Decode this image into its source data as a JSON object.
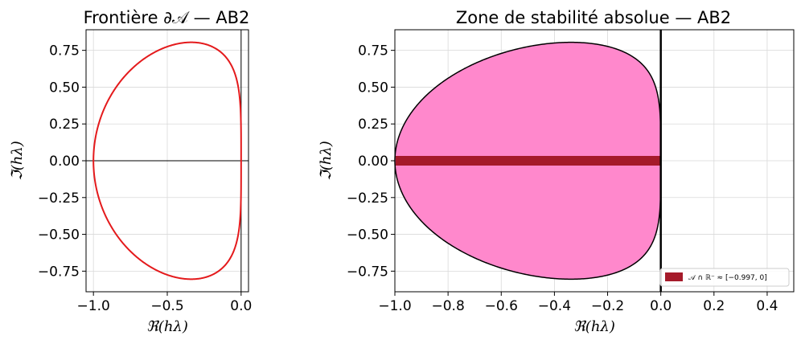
{
  "chart_data": [
    {
      "type": "line",
      "title": "Frontière ∂𝒜 — AB2",
      "xlabel": "ℜ(hλ)",
      "ylabel": "ℑ(hλ)",
      "xlim": [
        -1.05,
        0.05
      ],
      "ylim": [
        -0.89,
        0.89
      ],
      "x_ticks": [
        "−1.0",
        "−0.5",
        "0.0"
      ],
      "y_ticks": [
        "0.75",
        "0.50",
        "0.25",
        "0.00",
        "−0.25",
        "−0.50",
        "−0.75"
      ],
      "grid": true,
      "series": [
        {
          "color": "#e41a1c",
          "curve": "AB2 boundary: z = (w^2 - w) / (1.5 w - 0.5), w = e^{iθ}",
          "leftmost_point": [
            -1.0,
            0.0
          ],
          "extreme_imag": [
            [
              -0.333,
              0.805
            ],
            [
              -0.333,
              -0.805
            ]
          ]
        }
      ],
      "reference_lines": [
        {
          "axis": "x",
          "value": 0
        },
        {
          "axis": "y",
          "value": 0
        }
      ]
    },
    {
      "type": "area",
      "title": "Zone de stabilité absolue — AB2",
      "xlabel": "ℜ(hλ)",
      "ylabel": "ℑ(hλ)",
      "xlim": [
        -1.0,
        0.5
      ],
      "ylim": [
        -0.89,
        0.89
      ],
      "x_ticks": [
        "−1.0",
        "−0.8",
        "−0.6",
        "−0.4",
        "−0.2",
        "0.0",
        "0.2",
        "0.4"
      ],
      "y_ticks": [
        "0.75",
        "0.50",
        "0.25",
        "0.00",
        "−0.25",
        "−0.50",
        "−0.75"
      ],
      "grid": true,
      "region": {
        "fill": "#ff88cc",
        "edge": "#000000"
      },
      "real_interval": {
        "from": -0.997,
        "to": 0.0,
        "color": "#a51a2a"
      },
      "legend": {
        "placement": "lower-right",
        "entries": [
          {
            "label": "𝒜 ∩ ℝ⁻ ≈ [−0.997, 0]",
            "color": "#a51a2a"
          }
        ]
      }
    }
  ]
}
